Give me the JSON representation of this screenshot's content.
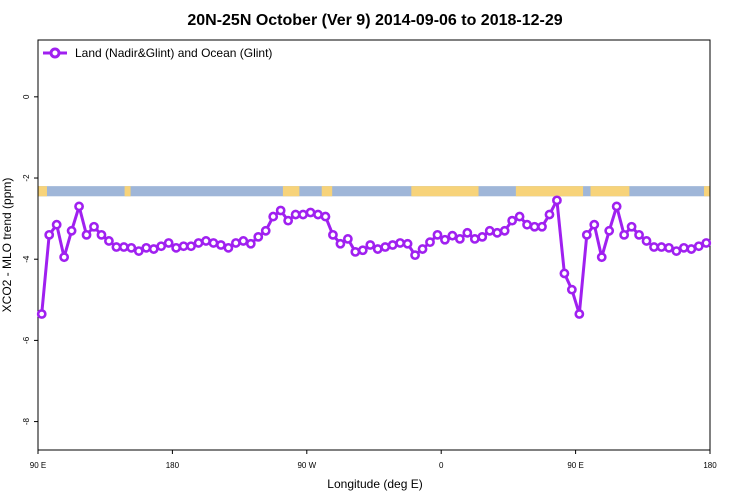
{
  "chart_data": {
    "type": "line",
    "title": "20N-25N October (Ver 9)   2014-09-06 to 2018-12-29",
    "xlabel": "Longitude (deg E)",
    "ylabel": "XCO2 - MLO trend (ppm)",
    "x_ticks": [
      {
        "value": 90,
        "label": "90 E"
      },
      {
        "value": 180,
        "label": "180"
      },
      {
        "value": 270,
        "label": "90 W"
      },
      {
        "value": 360,
        "label": "0"
      },
      {
        "value": 450,
        "label": "90 E"
      },
      {
        "value": 540,
        "label": "180"
      }
    ],
    "y_ticks": [
      0,
      -2,
      -4,
      -6,
      -8
    ],
    "xlim": [
      90,
      540
    ],
    "ylim": [
      -8.7,
      1.4
    ],
    "grid": false,
    "legend_position": "top-left",
    "map_strip_y_range": [
      -2.45,
      -2.2
    ],
    "colors": {
      "series": "#a020f0",
      "ocean": "#9fb6d8",
      "land": "#f7d37a"
    },
    "series": [
      {
        "name": "Land (Nadir&Glint) and Ocean (Glint)",
        "x": [
          92.5,
          97.5,
          102.5,
          107.5,
          112.5,
          117.5,
          122.5,
          127.5,
          132.5,
          137.5,
          142.5,
          147.5,
          152.5,
          157.5,
          162.5,
          167.5,
          172.5,
          177.5,
          182.5,
          187.5,
          192.5,
          197.5,
          202.5,
          207.5,
          212.5,
          217.5,
          222.5,
          227.5,
          232.5,
          237.5,
          242.5,
          247.5,
          252.5,
          257.5,
          262.5,
          267.5,
          272.5,
          277.5,
          282.5,
          287.5,
          292.5,
          297.5,
          302.5,
          307.5,
          312.5,
          317.5,
          322.5,
          327.5,
          332.5,
          337.5,
          342.5,
          347.5,
          352.5,
          357.5,
          362.5,
          367.5,
          372.5,
          377.5,
          382.5,
          387.5,
          392.5,
          397.5,
          402.5,
          407.5,
          412.5,
          417.5,
          422.5,
          427.5,
          432.5,
          437.5,
          442.5,
          447.5,
          452.5,
          457.5,
          462.5,
          467.5,
          472.5,
          477.5,
          482.5,
          487.5,
          492.5,
          497.5,
          502.5,
          507.5,
          512.5,
          517.5,
          522.5,
          527.5,
          532.5,
          537.5
        ],
        "values": [
          -5.35,
          -3.4,
          -3.15,
          -3.95,
          -3.3,
          -2.7,
          -3.4,
          -3.2,
          -3.4,
          -3.55,
          -3.7,
          -3.7,
          -3.72,
          -3.8,
          -3.72,
          -3.75,
          -3.68,
          -3.6,
          -3.72,
          -3.68,
          -3.68,
          -3.6,
          -3.55,
          -3.6,
          -3.65,
          -3.72,
          -3.6,
          -3.55,
          -3.62,
          -3.45,
          -3.3,
          -2.95,
          -2.8,
          -3.05,
          -2.9,
          -2.9,
          -2.85,
          -2.9,
          -2.95,
          -3.4,
          -3.62,
          -3.5,
          -3.82,
          -3.78,
          -3.65,
          -3.75,
          -3.7,
          -3.65,
          -3.6,
          -3.62,
          -3.9,
          -3.75,
          -3.58,
          -3.4,
          -3.52,
          -3.42,
          -3.5,
          -3.35,
          -3.5,
          -3.45,
          -3.3,
          -3.35,
          -3.3,
          -3.05,
          -2.95,
          -3.15,
          -3.2,
          -3.2,
          -2.9,
          -2.55,
          -4.35,
          -4.75,
          -5.35,
          -3.4,
          -3.15,
          -3.95,
          -3.3,
          -2.7,
          -3.4,
          -3.2,
          -3.4,
          -3.55,
          -3.7,
          -3.7,
          -3.72,
          -3.8,
          -3.72,
          -3.75,
          -3.68,
          -3.6
        ]
      }
    ]
  }
}
